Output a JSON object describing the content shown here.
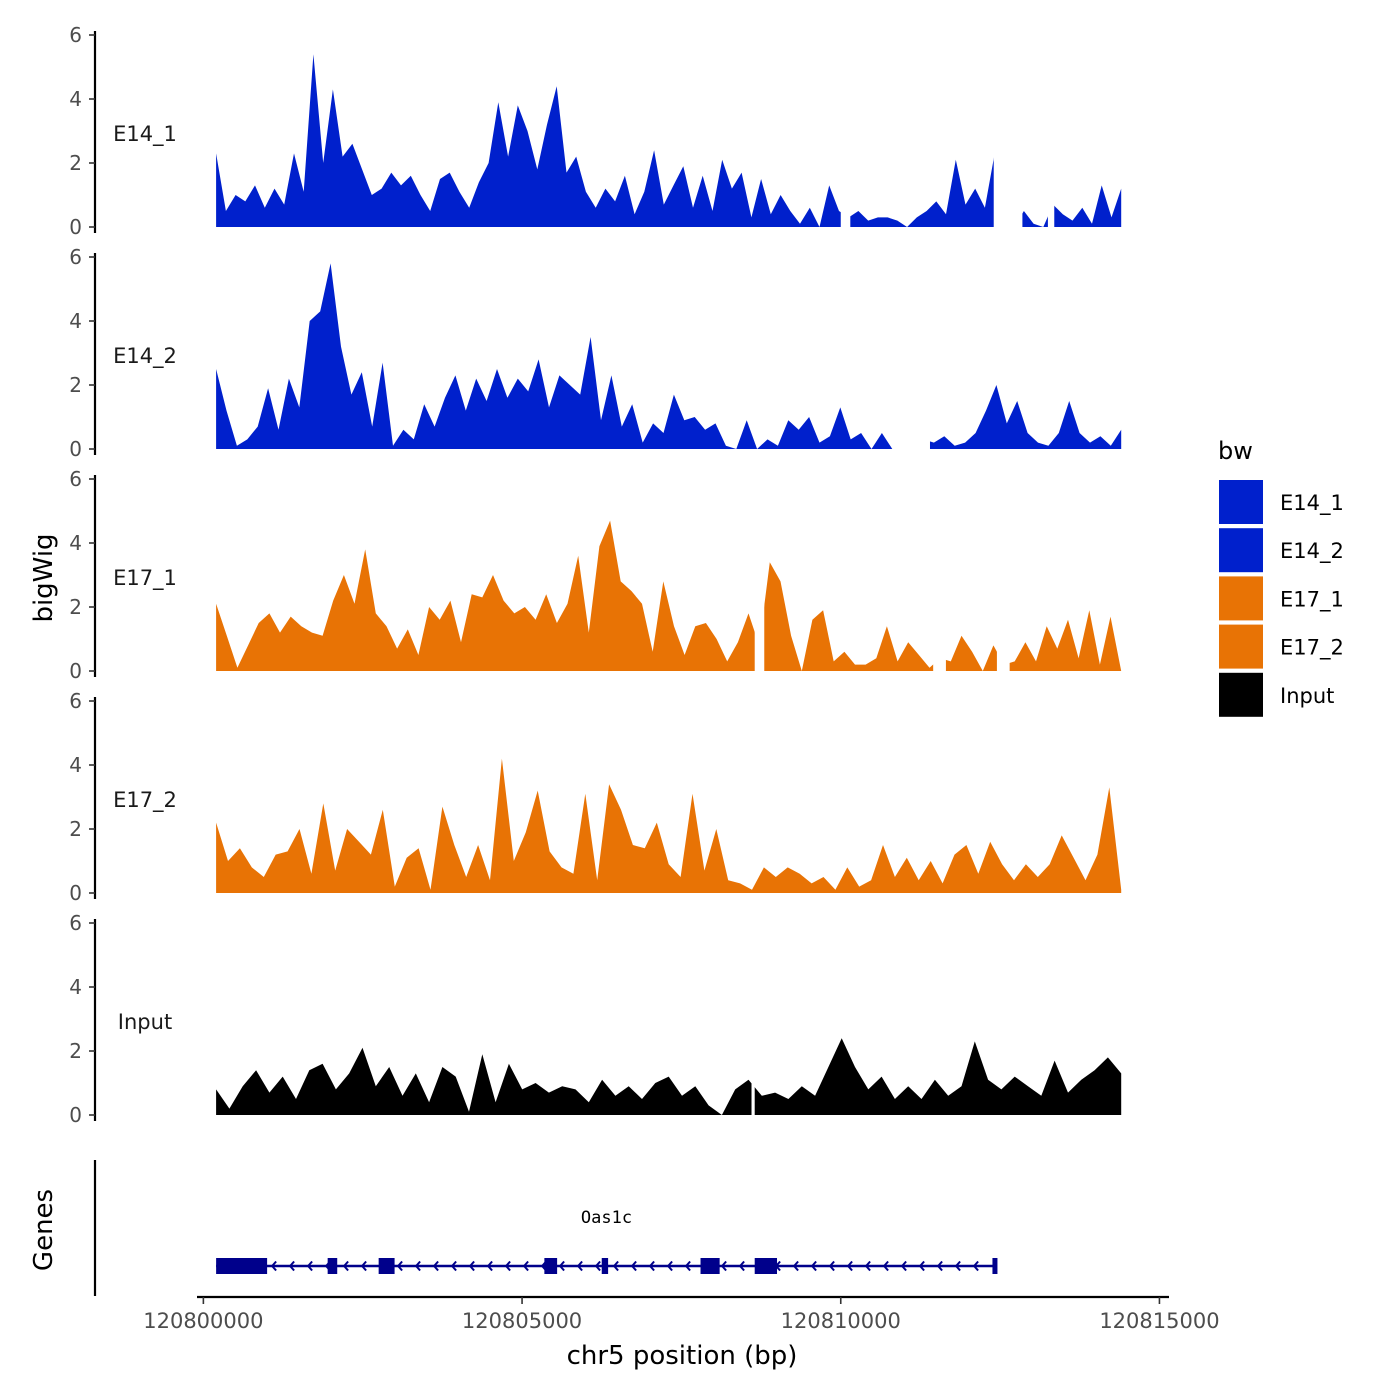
{
  "chart_data": {
    "type": "area",
    "title": "",
    "xlabel": "chr5 position (bp)",
    "ylabel": "bigWig",
    "genes_label": "Genes",
    "xlim": [
      120799900,
      120815150
    ],
    "x_ticks": [
      120800000,
      120805000,
      120810000,
      120815000
    ],
    "x_tick_labels": [
      "120800000",
      "120805000",
      "120810000",
      "120815000"
    ],
    "ylim": [
      0,
      6
    ],
    "y_ticks": [
      0,
      2,
      4,
      6
    ],
    "y_tick_labels": [
      "0",
      "2",
      "4",
      "6"
    ],
    "legend": {
      "title": "bw",
      "position": "right",
      "entries": [
        {
          "name": "E14_1",
          "color": "#0020cc"
        },
        {
          "name": "E14_2",
          "color": "#0020cc"
        },
        {
          "name": "E17_1",
          "color": "#e87305"
        },
        {
          "name": "E17_2",
          "color": "#e87305"
        },
        {
          "name": "Input",
          "color": "#000000"
        }
      ]
    },
    "series": [
      {
        "name": "E14_1",
        "color": "#0020cc",
        "x_start": 120800200,
        "x_end": 120814400,
        "values": [
          2.3,
          0.5,
          1.0,
          0.8,
          1.3,
          0.6,
          1.2,
          0.7,
          2.3,
          1.1,
          5.4,
          2.0,
          4.3,
          2.2,
          2.6,
          1.8,
          1.0,
          1.2,
          1.7,
          1.3,
          1.6,
          1.0,
          0.5,
          1.5,
          1.7,
          1.1,
          0.6,
          1.4,
          2.0,
          3.9,
          2.2,
          3.8,
          3.0,
          1.8,
          3.2,
          4.4,
          1.7,
          2.2,
          1.1,
          0.6,
          1.2,
          0.8,
          1.6,
          0.4,
          1.1,
          2.4,
          0.7,
          1.3,
          1.9,
          0.6,
          1.6,
          0.5,
          2.1,
          1.2,
          1.7,
          0.3,
          1.5,
          0.4,
          1.0,
          0.5,
          0.1,
          0.6,
          0.0,
          1.3,
          0.5,
          0.3,
          0.5,
          0.2,
          0.3,
          0.3,
          0.2,
          0.0,
          0.3,
          0.5,
          0.8,
          0.4,
          2.1,
          0.7,
          1.2,
          0.6,
          2.3,
          0.6,
          0.0,
          0.5,
          0.1,
          0.0,
          0.7,
          0.4,
          0.2,
          0.6,
          0.1,
          1.3,
          0.3,
          1.2
        ],
        "gaps": [
          [
            120810000,
            120810150
          ],
          [
            120812400,
            120812850
          ],
          [
            120813250,
            120813350
          ]
        ]
      },
      {
        "name": "E14_2",
        "color": "#0020cc",
        "x_start": 120800200,
        "x_end": 120814400,
        "values": [
          2.5,
          1.2,
          0.1,
          0.3,
          0.7,
          1.9,
          0.6,
          2.2,
          1.3,
          4.0,
          4.3,
          5.8,
          3.2,
          1.7,
          2.4,
          0.7,
          2.7,
          0.1,
          0.6,
          0.3,
          1.4,
          0.7,
          1.6,
          2.3,
          1.2,
          2.2,
          1.5,
          2.5,
          1.6,
          2.2,
          1.8,
          2.8,
          1.3,
          2.3,
          2.0,
          1.7,
          3.5,
          0.9,
          2.3,
          0.7,
          1.4,
          0.2,
          0.8,
          0.5,
          1.7,
          0.9,
          1.0,
          0.6,
          0.8,
          0.1,
          0.0,
          0.9,
          0.0,
          0.3,
          0.1,
          0.9,
          0.6,
          1.0,
          0.2,
          0.4,
          1.3,
          0.3,
          0.5,
          0.0,
          0.5,
          0.0,
          0.0,
          0.0,
          0.3,
          0.2,
          0.4,
          0.1,
          0.2,
          0.5,
          1.2,
          2.0,
          0.8,
          1.5,
          0.5,
          0.2,
          0.1,
          0.5,
          1.5,
          0.5,
          0.2,
          0.4,
          0.1,
          0.6
        ],
        "gaps": [
          [
            120810950,
            120811400
          ]
        ]
      },
      {
        "name": "E17_1",
        "color": "#e87305",
        "x_start": 120800200,
        "x_end": 120814400,
        "values": [
          2.1,
          1.1,
          0.1,
          0.8,
          1.5,
          1.8,
          1.2,
          1.7,
          1.4,
          1.2,
          1.1,
          2.2,
          3.0,
          2.1,
          3.8,
          1.8,
          1.4,
          0.7,
          1.3,
          0.5,
          2.0,
          1.6,
          2.2,
          0.9,
          2.4,
          2.3,
          3.0,
          2.2,
          1.8,
          2.0,
          1.6,
          2.4,
          1.5,
          2.1,
          3.6,
          1.2,
          3.9,
          4.7,
          2.8,
          2.5,
          2.1,
          0.6,
          2.8,
          1.4,
          0.5,
          1.4,
          1.5,
          1.0,
          0.3,
          0.9,
          1.8,
          0.8,
          3.4,
          2.8,
          1.1,
          0.0,
          1.6,
          1.9,
          0.3,
          0.6,
          0.2,
          0.2,
          0.4,
          1.4,
          0.3,
          0.9,
          0.5,
          0.1,
          0.4,
          0.3,
          1.1,
          0.6,
          0.0,
          0.8,
          0.2,
          0.3,
          0.9,
          0.3,
          1.4,
          0.7,
          1.6,
          0.4,
          1.9,
          0.2,
          1.7,
          0.0
        ],
        "gaps": [
          [
            120808650,
            120808800
          ],
          [
            120811450,
            120811650
          ],
          [
            120812450,
            120812650
          ]
        ]
      },
      {
        "name": "E17_2",
        "color": "#e87305",
        "x_start": 120800200,
        "x_end": 120814400,
        "values": [
          2.2,
          1.0,
          1.4,
          0.8,
          0.5,
          1.2,
          1.3,
          2.0,
          0.6,
          2.8,
          0.7,
          2.0,
          1.6,
          1.2,
          2.6,
          0.2,
          1.1,
          1.4,
          0.1,
          2.7,
          1.5,
          0.5,
          1.5,
          0.4,
          4.2,
          1.0,
          1.9,
          3.2,
          1.3,
          0.8,
          0.6,
          3.1,
          0.4,
          3.4,
          2.6,
          1.5,
          1.4,
          2.2,
          0.9,
          0.5,
          3.1,
          0.7,
          2.0,
          0.4,
          0.3,
          0.1,
          0.8,
          0.5,
          0.8,
          0.6,
          0.3,
          0.5,
          0.1,
          0.8,
          0.2,
          0.4,
          1.5,
          0.5,
          1.1,
          0.4,
          1.0,
          0.3,
          1.2,
          1.5,
          0.6,
          1.6,
          0.9,
          0.4,
          0.9,
          0.5,
          0.9,
          1.8,
          1.1,
          0.4,
          1.2,
          3.3,
          0.1
        ],
        "gaps": []
      },
      {
        "name": "Input",
        "color": "#000000",
        "x_start": 120800200,
        "x_end": 120814400,
        "values": [
          0.8,
          0.2,
          0.9,
          1.4,
          0.7,
          1.2,
          0.5,
          1.4,
          1.6,
          0.8,
          1.3,
          2.1,
          0.9,
          1.5,
          0.6,
          1.3,
          0.4,
          1.5,
          1.2,
          0.1,
          1.9,
          0.4,
          1.6,
          0.8,
          1.0,
          0.7,
          0.9,
          0.8,
          0.4,
          1.1,
          0.6,
          0.9,
          0.5,
          1.0,
          1.2,
          0.6,
          0.9,
          0.3,
          0.0,
          0.8,
          1.1,
          0.6,
          0.7,
          0.5,
          0.9,
          0.6,
          1.5,
          2.4,
          1.5,
          0.8,
          1.2,
          0.5,
          0.9,
          0.5,
          1.1,
          0.6,
          0.9,
          2.3,
          1.1,
          0.8,
          1.2,
          0.9,
          0.6,
          1.7,
          0.7,
          1.1,
          1.4,
          1.8,
          1.3
        ],
        "gaps": [
          [
            120808600,
            120808650
          ]
        ]
      }
    ],
    "genes": [
      {
        "name": "Oas1c",
        "color": "#00008b",
        "strand": "-",
        "start": 120800200,
        "end": 120812450,
        "exons": [
          [
            120800200,
            120801000
          ],
          [
            120801950,
            120802100
          ],
          [
            120802750,
            120803000
          ],
          [
            120805350,
            120805550
          ],
          [
            120806250,
            120806350
          ],
          [
            120807800,
            120808100
          ],
          [
            120808650,
            120809000
          ],
          [
            120812380,
            120812450
          ]
        ]
      }
    ]
  }
}
